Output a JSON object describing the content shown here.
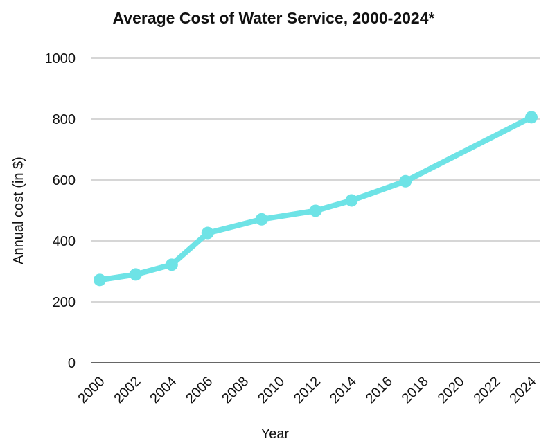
{
  "chart_data": {
    "type": "line",
    "title": "Average Cost of Water Service, 2000-2024*",
    "xlabel": "Year",
    "ylabel": "Annual cost (in $)",
    "x_ticks": [
      "2000",
      "2002",
      "2004",
      "2006",
      "2008",
      "2010",
      "2012",
      "2014",
      "2016",
      "2018",
      "2020",
      "2022",
      "2024"
    ],
    "y_ticks": [
      "0",
      "200",
      "400",
      "600",
      "800",
      "1000"
    ],
    "xlim": [
      2000,
      2024
    ],
    "ylim": [
      0,
      1000
    ],
    "grid": true,
    "legend": "none",
    "series": [
      {
        "color": "#6EE3E6",
        "points": [
          {
            "x": 2000,
            "y": 272
          },
          {
            "x": 2002,
            "y": 290
          },
          {
            "x": 2004,
            "y": 322
          },
          {
            "x": 2006,
            "y": 426
          },
          {
            "x": 2009,
            "y": 471
          },
          {
            "x": 2012,
            "y": 499
          },
          {
            "x": 2014,
            "y": 533
          },
          {
            "x": 2017,
            "y": 596
          },
          {
            "x": 2024,
            "y": 806
          }
        ]
      }
    ]
  }
}
